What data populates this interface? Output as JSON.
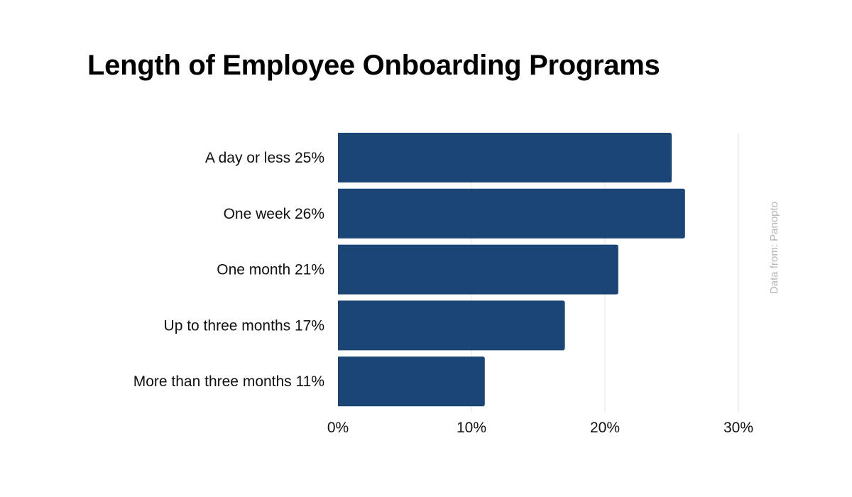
{
  "chart_data": {
    "type": "bar",
    "orientation": "horizontal",
    "title": "Length of Employee Onboarding Programs",
    "categories": [
      "A day or less 25%",
      "One week 26%",
      "One month 21%",
      "Up to three months 17%",
      "More than three months 11%"
    ],
    "values": [
      25,
      26,
      21,
      17,
      11
    ],
    "xlim": [
      0,
      30
    ],
    "xticks": [
      "0%",
      "10%",
      "20%",
      "30%"
    ],
    "xtick_values": [
      0,
      10,
      20,
      30
    ],
    "grid": true,
    "bar_color": "#1a4575",
    "source": "Data from: Panopto"
  }
}
